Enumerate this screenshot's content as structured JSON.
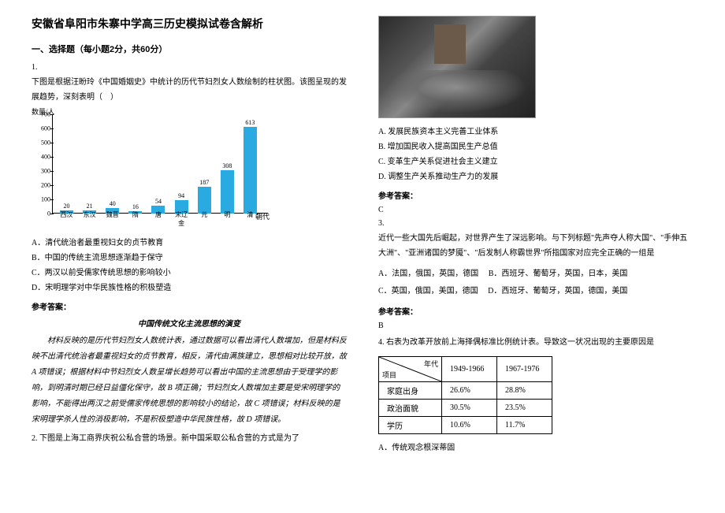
{
  "title": "安徽省阜阳市朱寨中学高三历史模拟试卷含解析",
  "section1": "一、选择题（每小题2分，共60分）",
  "q1": {
    "num": "1.",
    "stem": "下图是根据汪盼玲《中国婚姻史》中统计的历代节妇烈女人数绘制的柱状图。该图呈现的发展趋势，深刻表明（　）",
    "chart": {
      "ylabel": "数量/人",
      "xlabel_end": "朝代",
      "ymax": 700,
      "ytick_step": 100,
      "yticks": [
        0,
        100,
        200,
        300,
        400,
        500,
        600,
        700
      ],
      "bar_color": "#29abe2",
      "categories": [
        "西汉",
        "东汉",
        "魏晋",
        "隋",
        "唐",
        "宋辽金",
        "元",
        "明",
        "清"
      ],
      "values": [
        20,
        21,
        40,
        16,
        54,
        94,
        187,
        308,
        613
      ],
      "value_labels": [
        "20",
        "21",
        "40",
        "16",
        "54",
        "94",
        "187",
        "308",
        "613"
      ],
      "label_fontsize": 8
    },
    "opts": {
      "A": "A．清代统治者最重视妇女的贞节教育",
      "B": "B．中国的传统主流思想逐渐趋于保守",
      "C": "C．两汉以前受儒家传统思想的影响较小",
      "D": "D．宋明理学对中华民族性格的积极塑造"
    },
    "answer_label": "参考答案：",
    "explain_title": "中国传统文化主流思想的演变",
    "explain": "材料反映的是历代节妇烈女人数统计表，通过数据可以看出清代人数增加，但是材料反映不出清代统治者最重视妇女的贞节教育，相反，清代由满族建立，思想相对比较开放，故 A 项错误；根据材料中节妇烈女人数呈增长趋势可以看出中国的主流思想由于受理学的影响，到明清时期已经日益僵化保守，故 B 项正确；节妇烈女人数增加主要是受宋明理学的影响，不能得出两汉之前受儒家传统思想的影响较小的结论，故 C 项错误；材料反映的是宋明理学杀人性的消极影响，不是积极塑造中华民族性格，故 D 项错误。"
  },
  "q2": {
    "stem": "2. 下图是上海工商界庆祝公私合营的场景。新中国采取公私合营的方式是为了",
    "opts": {
      "A": "A. 发展民族资本主义完善工业体系",
      "B": "B. 增加国民收入提高国民生产总值",
      "C": "C. 变革生产关系促进社会主义建立",
      "D": "D. 调整生产关系推动生产力的发展"
    },
    "answer_label": "参考答案：",
    "answer": "C"
  },
  "q3": {
    "num": "3.",
    "stem": "近代一些大国先后崛起，对世界产生了深远影响。与下列标题\"先声夺人称大国\"、\"手伸五大洲\"、\"亚洲诸国的梦魇\"、\"后发制人称霸世界\"所指国家对应完全正确的一组是",
    "opts": {
      "A": "A．法国，俄国，英国，德国",
      "B": "B．西班牙、葡萄牙，英国，日本，美国",
      "C": "C．英国，俄国，美国，德国",
      "D": "D．西班牙、葡萄牙，英国，德国，美国"
    },
    "answer_label": "参考答案：",
    "answer": "B"
  },
  "q4": {
    "stem": "4. 右表为改革开放前上海择偶标准比例统计表。导致这一状况出现的主要原因是",
    "table": {
      "diag_top": "年代",
      "diag_bot": "项目",
      "cols": [
        "1949-1966",
        "1967-1976"
      ],
      "rows": [
        {
          "label": "家庭出身",
          "vals": [
            "26.6%",
            "28.8%"
          ]
        },
        {
          "label": "政治面貌",
          "vals": [
            "30.5%",
            "23.5%"
          ]
        },
        {
          "label": "学历",
          "vals": [
            "10.6%",
            "11.7%"
          ]
        }
      ]
    },
    "optA": "A．传统观念根深蒂固"
  }
}
